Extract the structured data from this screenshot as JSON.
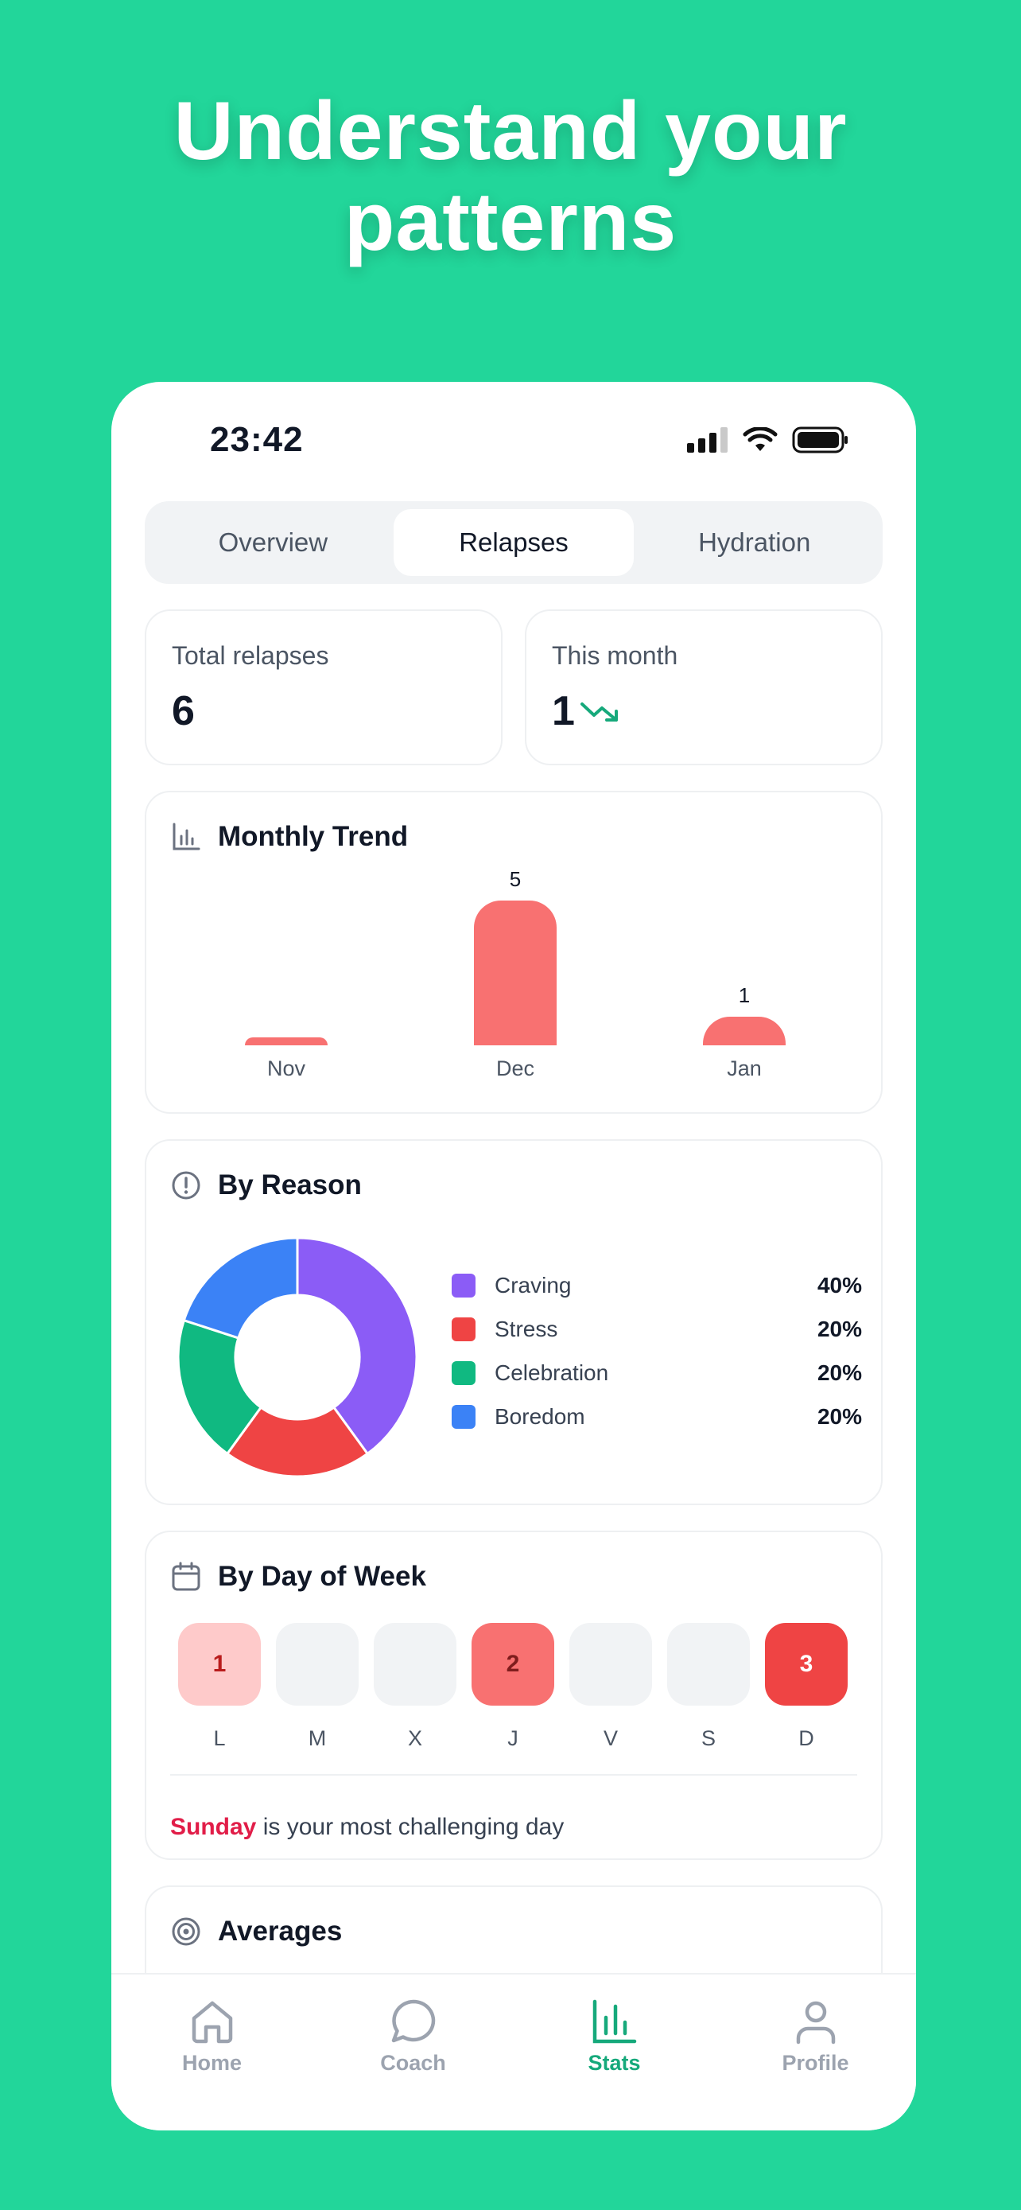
{
  "headline": {
    "line1": "Understand your",
    "line2": "patterns"
  },
  "status_bar": {
    "time": "23:42"
  },
  "segmented": {
    "tabs": [
      "Overview",
      "Relapses",
      "Hydration"
    ],
    "active": "Relapses"
  },
  "stats": {
    "total": {
      "label": "Total relapses",
      "value": "6"
    },
    "month": {
      "label": "This month",
      "value": "1",
      "trend_icon": "trending-down-icon",
      "trend_color": "#16A97B"
    }
  },
  "monthly_trend": {
    "title": "Monthly Trend",
    "chart_data": {
      "type": "bar",
      "categories": [
        "Nov",
        "Dec",
        "Jan"
      ],
      "values": [
        0,
        5,
        1
      ],
      "data_labels": [
        "",
        "5",
        "1"
      ],
      "ylim": [
        0,
        5
      ],
      "color": "#F87171"
    }
  },
  "by_reason": {
    "title": "By Reason",
    "chart_data": {
      "type": "pie",
      "donut": true,
      "categories": [
        "Craving",
        "Stress",
        "Celebration",
        "Boredom"
      ],
      "values": [
        40,
        20,
        20,
        20
      ],
      "labels": [
        "40%",
        "20%",
        "20%",
        "20%"
      ],
      "colors": [
        "#8B5CF6",
        "#EF4444",
        "#10B981",
        "#3B82F6"
      ]
    }
  },
  "by_day": {
    "title": "By Day of Week",
    "days": [
      {
        "label": "L",
        "count": "1",
        "bg": "#FECACA",
        "fg": "#B91C1C"
      },
      {
        "label": "M",
        "count": "",
        "bg": "#F1F3F5",
        "fg": "#111827"
      },
      {
        "label": "X",
        "count": "",
        "bg": "#F1F3F5",
        "fg": "#111827"
      },
      {
        "label": "J",
        "count": "2",
        "bg": "#F87171",
        "fg": "#7F1D1D"
      },
      {
        "label": "V",
        "count": "",
        "bg": "#F1F3F5",
        "fg": "#111827"
      },
      {
        "label": "S",
        "count": "",
        "bg": "#F1F3F5",
        "fg": "#111827"
      },
      {
        "label": "D",
        "count": "3",
        "bg": "#EF4444",
        "fg": "#ffffff"
      }
    ],
    "insight_highlight": "Sunday",
    "insight_rest": " is your most challenging day"
  },
  "averages": {
    "title": "Averages"
  },
  "tab_bar": {
    "items": [
      {
        "label": "Home",
        "icon": "home-icon"
      },
      {
        "label": "Coach",
        "icon": "chat-bubble-icon"
      },
      {
        "label": "Stats",
        "icon": "bar-chart-icon"
      },
      {
        "label": "Profile",
        "icon": "person-icon"
      }
    ],
    "active": "Stats",
    "active_color": "#16A97B"
  }
}
